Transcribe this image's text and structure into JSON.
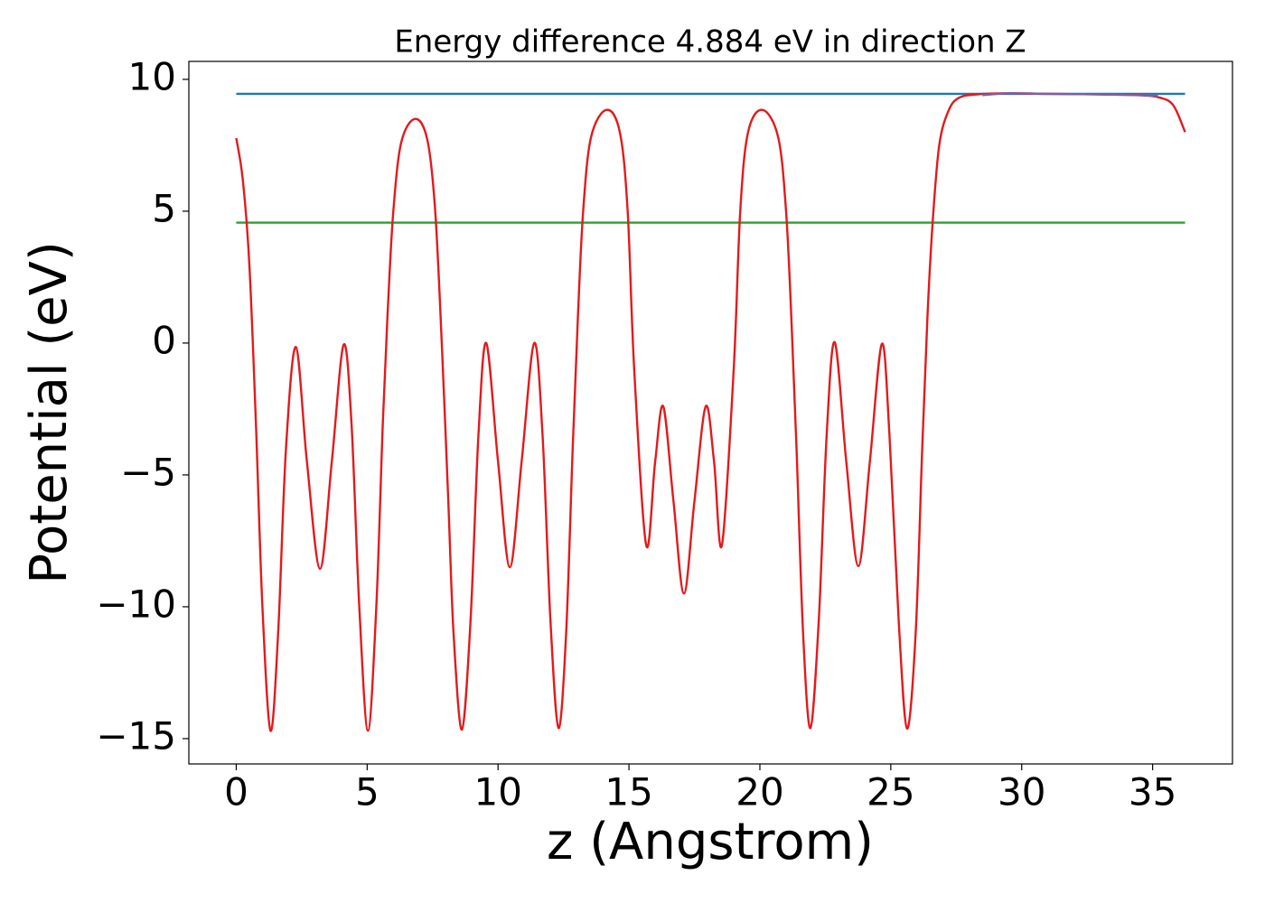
{
  "chart_data": {
    "type": "line",
    "title": "Energy difference 4.884 eV in direction Z",
    "x_label": "z (Angstrom)",
    "y_label": "Potential (eV)",
    "xlim": [
      -1.81,
      38.05
    ],
    "ylim": [
      -15.96,
      10.68
    ],
    "xticks": [
      0,
      5,
      10,
      15,
      20,
      25,
      30,
      35
    ],
    "yticks": [
      {
        "value": -15,
        "label": "−15"
      },
      {
        "value": -10,
        "label": "−10"
      },
      {
        "value": -5,
        "label": "−5"
      },
      0,
      5,
      10
    ],
    "grid": false,
    "series": [
      {
        "color": "#1f77b4",
        "x": [
          0,
          36.24
        ],
        "values": [
          9.45,
          9.45
        ]
      },
      {
        "color": "#2ca02c",
        "x": [
          0,
          36.24
        ],
        "values": [
          4.566,
          4.566
        ]
      },
      {
        "color": "#e31a1c",
        "x": [
          0,
          0.25,
          0.5,
          0.75,
          1.0,
          1.31,
          1.6,
          1.9,
          2.28,
          2.7,
          3.2,
          3.65,
          4.1,
          4.4,
          4.7,
          5.03,
          5.35,
          5.6,
          5.8,
          6.0,
          6.3,
          6.83,
          7.3,
          7.6,
          7.85,
          8.1,
          8.3,
          8.62,
          8.95,
          9.25,
          9.55,
          10.0,
          10.45,
          10.9,
          11.38,
          11.7,
          12.0,
          12.31,
          12.6,
          12.85,
          13.05,
          13.25,
          13.55,
          14.14,
          14.65,
          14.95,
          15.2,
          15.66,
          16.0,
          16.31,
          16.7,
          17.1,
          17.5,
          17.93,
          18.25,
          18.55,
          19.0,
          19.25,
          19.55,
          20.1,
          20.7,
          21.0,
          21.2,
          21.4,
          21.65,
          21.93,
          22.25,
          22.55,
          22.86,
          23.3,
          23.76,
          24.2,
          24.66,
          24.95,
          25.3,
          25.62,
          25.95,
          26.2,
          26.4,
          26.6,
          26.85,
          27.2,
          27.6,
          28.3,
          29.5,
          31,
          33,
          34.5,
          35.3,
          35.8,
          36.24
        ],
        "values": [
          7.77,
          6.2,
          3,
          -3,
          -10,
          -14.7,
          -11,
          -4,
          -0.15,
          -4.5,
          -8.56,
          -4.5,
          -0.07,
          -3,
          -10,
          -14.7,
          -10,
          -3,
          1.5,
          5,
          7.6,
          8.5,
          7.7,
          5,
          0,
          -6,
          -11,
          -14.66,
          -10.5,
          -3.5,
          0,
          -4.5,
          -8.5,
          -4.5,
          0,
          -3.5,
          -10.5,
          -14.6,
          -11,
          -4,
          1,
          5,
          7.8,
          8.84,
          8,
          5,
          -1,
          -7.67,
          -4.5,
          -2.4,
          -6,
          -9.5,
          -6,
          -2.4,
          -4.5,
          -7.67,
          -1,
          5,
          8,
          8.84,
          7.8,
          5,
          1,
          -4,
          -11,
          -14.6,
          -10.5,
          -3.5,
          0.03,
          -4.5,
          -8.46,
          -4.5,
          -0.03,
          -3.5,
          -10.5,
          -14.62,
          -11,
          -4,
          1,
          4.6,
          7.5,
          8.8,
          9.3,
          9.43,
          9.47,
          9.45,
          9.43,
          9.4,
          9.3,
          9.0,
          8.0
        ]
      },
      {
        "color": "#7b5fa8",
        "x": [
          28.5,
          29.5,
          31,
          33,
          35.2
        ],
        "values": [
          9.4,
          9.47,
          9.45,
          9.43,
          9.38
        ]
      }
    ]
  }
}
